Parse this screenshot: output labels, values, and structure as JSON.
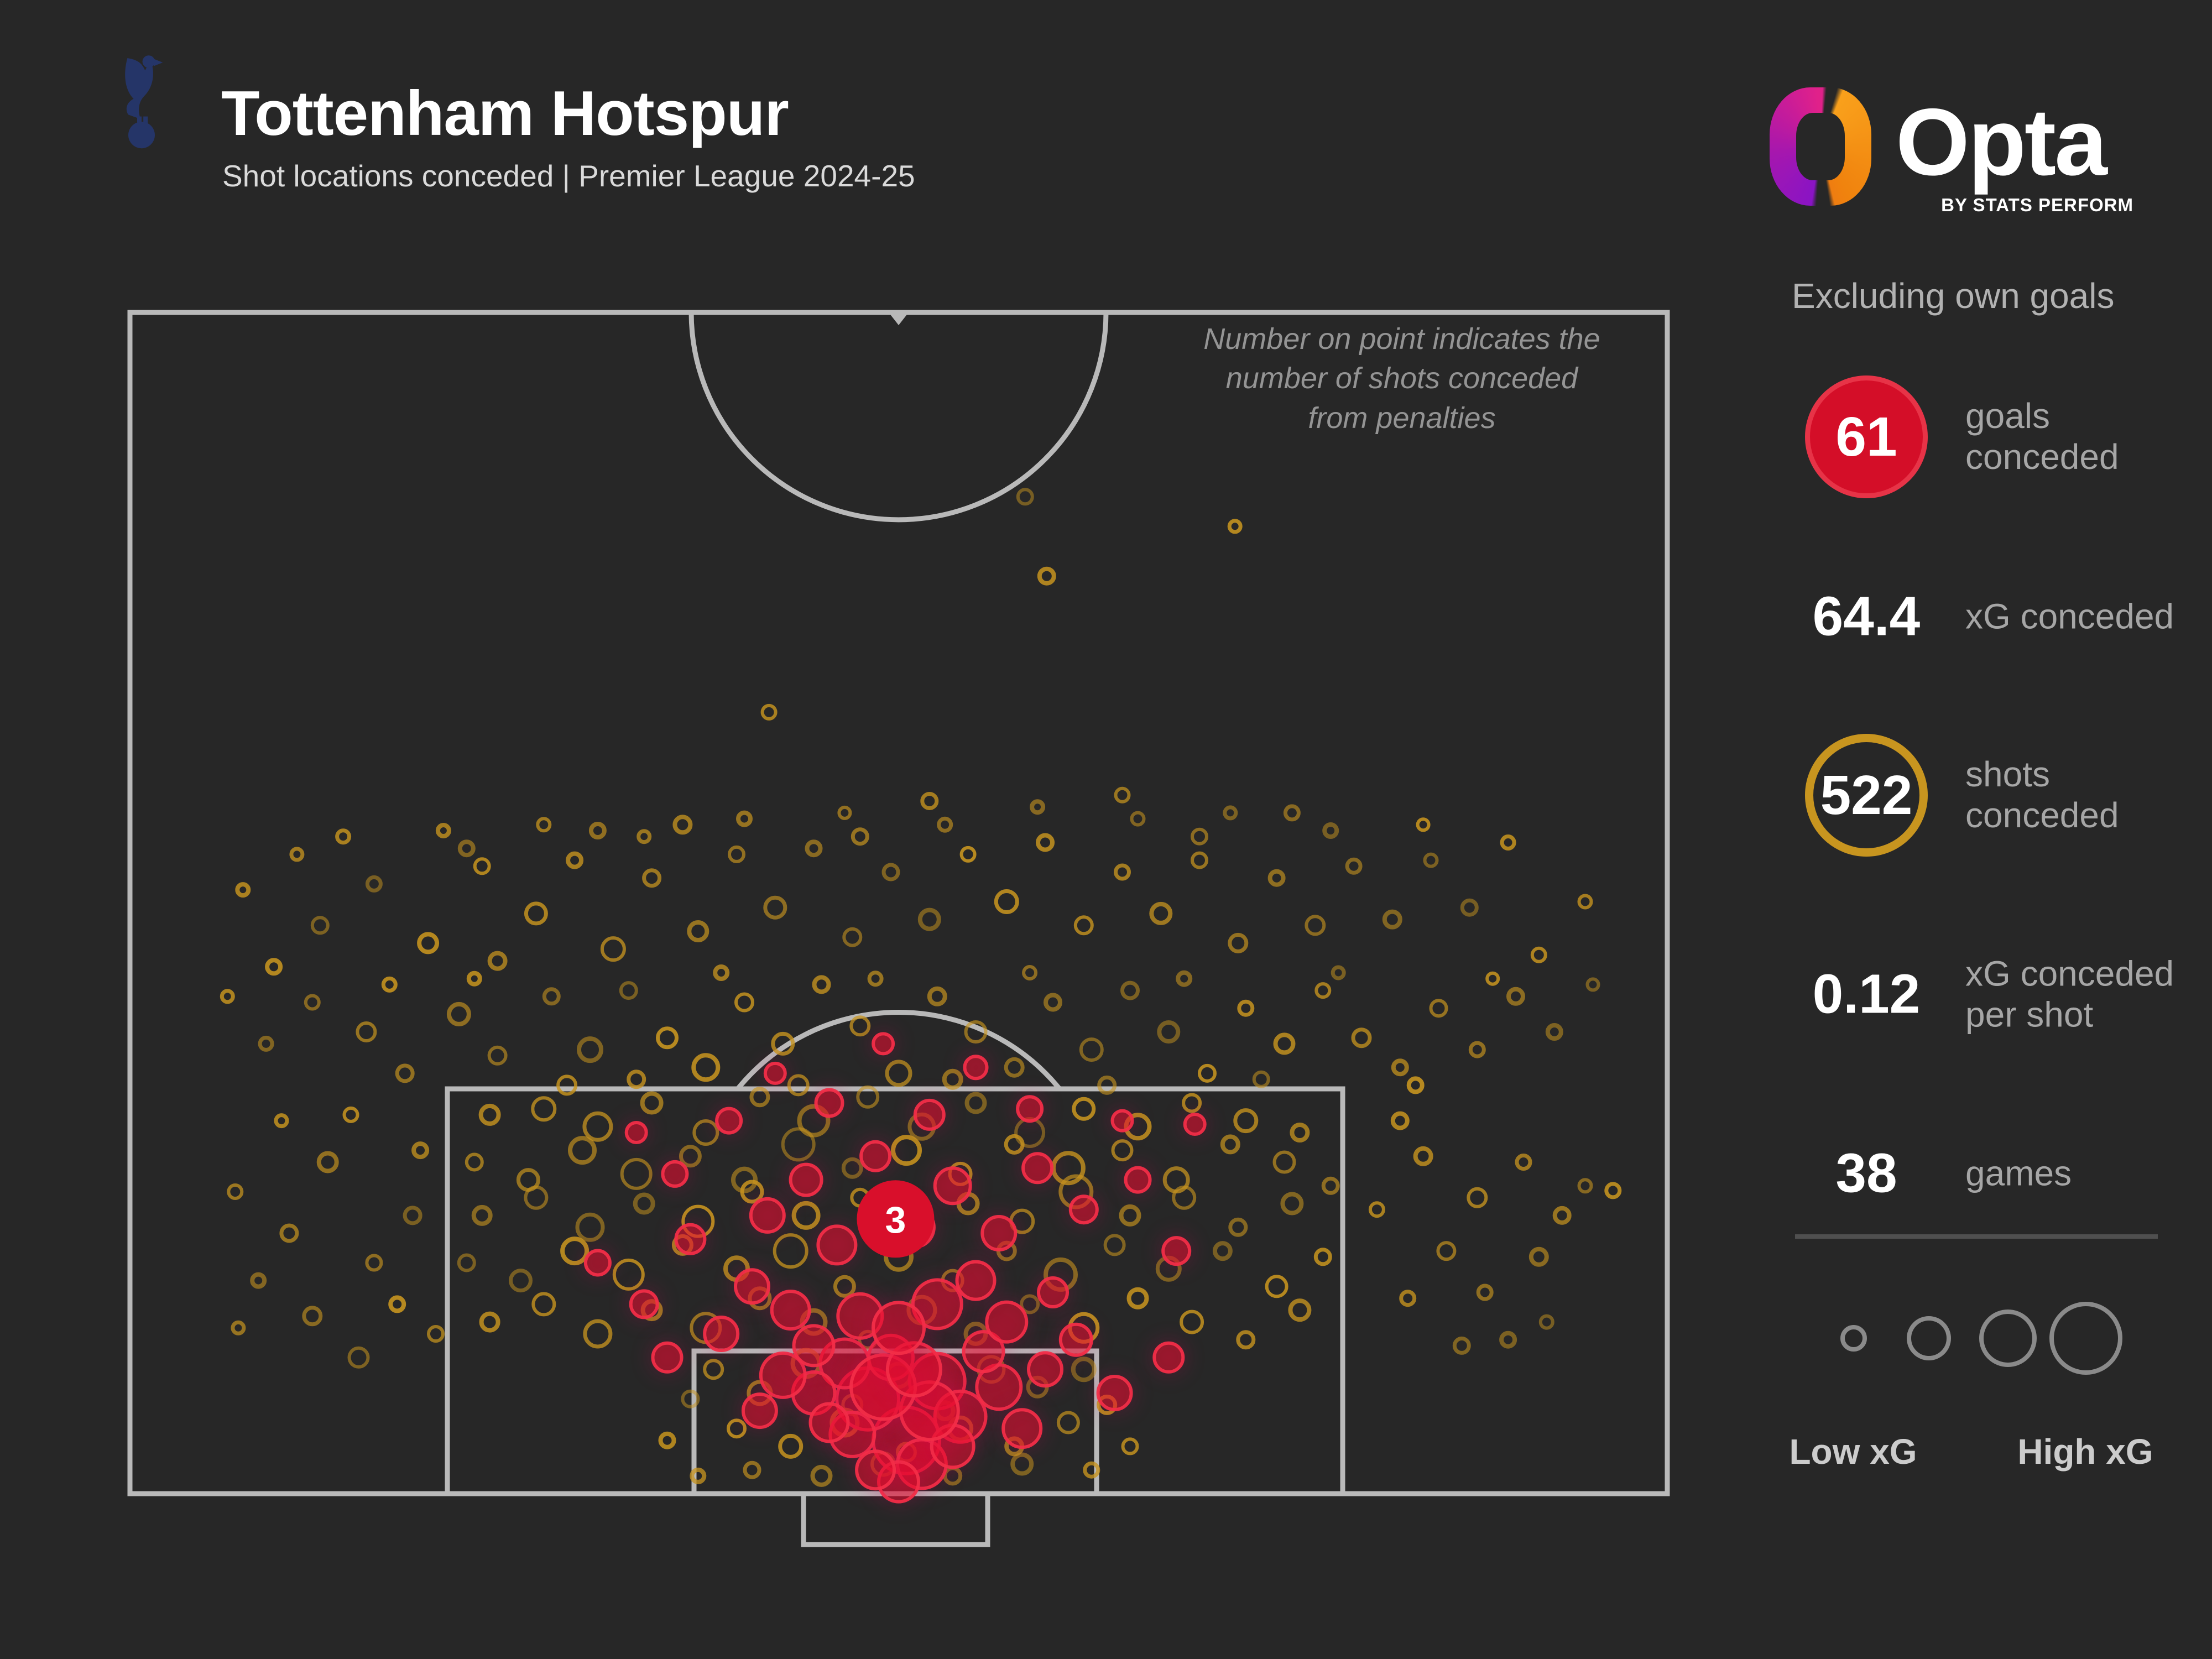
{
  "header": {
    "title": "Tottenham Hotspur",
    "subtitle": "Shot locations conceded | Premier League 2024-25",
    "crest_color": "#253568"
  },
  "brand": {
    "wordmark": "Opta",
    "byline": "BY STATS PERFORM",
    "ring_colors": {
      "magenta": "#e0218a",
      "purple": "#8a14c4",
      "orange": "#f9a01b",
      "amber": "#ef7d10"
    }
  },
  "stats_panel": {
    "heading": "Excluding own goals",
    "stats": [
      {
        "value": "61",
        "label": "goals conceded"
      },
      {
        "value": "64.4",
        "label": "xG conceded"
      },
      {
        "value": "522",
        "label": "shots conceded"
      },
      {
        "value": "0.12",
        "label_lines": [
          "xG conceded",
          "per shot"
        ]
      },
      {
        "value": "38",
        "label": "games"
      }
    ],
    "badge_colors": {
      "goal_fill": "#d40e28",
      "goal_rim": "#e73347",
      "shot_ring": "#c8951f"
    }
  },
  "legend": {
    "low_label": "Low xG",
    "high_label": "High xG",
    "ring_radii": [
      20,
      36,
      48,
      62
    ],
    "ring_color": "#8a8a8a"
  },
  "annotation": {
    "lines": [
      "Number on point indicates the",
      "number of shots conceded",
      "from penalties"
    ]
  },
  "pitch": {
    "line_color": "#b9b9b9",
    "background": "#272727"
  },
  "chart_data": {
    "type": "scatter",
    "title": "Shot locations conceded",
    "encoding": {
      "x": "pitch width percent (0 left - 100 right)",
      "y": "pitch length percent (0 halfway line - 100 goal line)",
      "size": "xG of chance (larger ring = higher xG)",
      "color": {
        "shot": "#c8951f",
        "goal": "#e8102c",
        "penalty_marker": "#d90f2b"
      }
    },
    "summary": {
      "goals_conceded": 61,
      "xg_conceded": 64.4,
      "shots_conceded": 522,
      "xg_per_shot": 0.12,
      "games": 38
    },
    "penalty_marker": {
      "x": 49.8,
      "y": 76.8,
      "r": 70,
      "count": "3"
    },
    "goals": [
      [
        50.5,
        95.5,
        60
      ],
      [
        48.0,
        92.0,
        56
      ],
      [
        52.5,
        90.5,
        50
      ],
      [
        46.5,
        89.0,
        44
      ],
      [
        54.0,
        93.5,
        46
      ],
      [
        49.5,
        88.5,
        40
      ],
      [
        51.5,
        97.5,
        44
      ],
      [
        47.0,
        95.0,
        40
      ],
      [
        53.5,
        96.0,
        38
      ],
      [
        44.5,
        91.5,
        38
      ],
      [
        56.5,
        91.0,
        40
      ],
      [
        50.0,
        99.0,
        36
      ],
      [
        45.5,
        94.0,
        34
      ],
      [
        42.5,
        90.0,
        40
      ],
      [
        58.0,
        94.5,
        34
      ],
      [
        48.5,
        98.0,
        34
      ],
      [
        55.5,
        88.0,
        36
      ],
      [
        41.0,
        93.0,
        30
      ],
      [
        59.5,
        89.5,
        30
      ],
      [
        52.0,
        93.0,
        52
      ],
      [
        49.0,
        91.0,
        58
      ],
      [
        51.0,
        89.5,
        48
      ],
      [
        38.5,
        86.5,
        30
      ],
      [
        43.0,
        84.5,
        34
      ],
      [
        47.5,
        85.0,
        40
      ],
      [
        52.5,
        84.0,
        44
      ],
      [
        57.0,
        85.5,
        36
      ],
      [
        61.5,
        87.0,
        28
      ],
      [
        35.0,
        88.5,
        26
      ],
      [
        64.0,
        91.5,
        30
      ],
      [
        40.5,
        82.5,
        30
      ],
      [
        55.0,
        82.0,
        34
      ],
      [
        60.0,
        83.0,
        26
      ],
      [
        33.5,
        84.0,
        24
      ],
      [
        67.5,
        88.5,
        26
      ],
      [
        44.5,
        87.5,
        36
      ],
      [
        50.0,
        86.0,
        46
      ],
      [
        36.5,
        78.5,
        26
      ],
      [
        41.5,
        76.5,
        30
      ],
      [
        46.0,
        79.0,
        34
      ],
      [
        51.0,
        77.5,
        36
      ],
      [
        56.5,
        78.0,
        30
      ],
      [
        62.0,
        76.0,
        24
      ],
      [
        30.5,
        80.5,
        22
      ],
      [
        68.0,
        79.5,
        24
      ],
      [
        44.0,
        73.5,
        28
      ],
      [
        53.5,
        74.0,
        32
      ],
      [
        59.0,
        72.5,
        26
      ],
      [
        35.5,
        73.0,
        22
      ],
      [
        48.5,
        71.5,
        26
      ],
      [
        65.5,
        73.5,
        22
      ],
      [
        39.0,
        68.5,
        22
      ],
      [
        45.5,
        67.0,
        24
      ],
      [
        52.0,
        68.0,
        26
      ],
      [
        58.5,
        67.5,
        22
      ],
      [
        33.0,
        69.5,
        18
      ],
      [
        64.5,
        68.5,
        18
      ],
      [
        42.0,
        64.5,
        18
      ],
      [
        55.0,
        64.0,
        20
      ],
      [
        49.0,
        62.0,
        18
      ],
      [
        69.2,
        68.8,
        18
      ]
    ],
    "shots": [
      [
        58.2,
        15.8,
        13
      ],
      [
        71.8,
        18.3,
        10
      ],
      [
        59.6,
        22.5,
        13
      ],
      [
        41.6,
        34.0,
        12
      ],
      [
        52.0,
        41.5,
        13
      ],
      [
        36.0,
        43.5,
        14
      ],
      [
        64.5,
        41.0,
        12
      ],
      [
        47.5,
        44.5,
        13
      ],
      [
        30.5,
        44.0,
        12
      ],
      [
        69.5,
        44.5,
        13
      ],
      [
        75.5,
        42.5,
        12
      ],
      [
        22.0,
        45.5,
        12
      ],
      [
        12.5,
        52.0,
        14
      ],
      [
        16.0,
        48.5,
        12
      ],
      [
        19.5,
        53.5,
        16
      ],
      [
        23.0,
        47.0,
        13
      ],
      [
        26.5,
        51.0,
        18
      ],
      [
        29.0,
        46.5,
        12
      ],
      [
        31.5,
        54.0,
        20
      ],
      [
        34.0,
        48.0,
        14
      ],
      [
        37.0,
        52.5,
        16
      ],
      [
        39.5,
        46.0,
        13
      ],
      [
        42.0,
        50.5,
        18
      ],
      [
        44.5,
        45.5,
        12
      ],
      [
        47.0,
        53.0,
        15
      ],
      [
        49.5,
        47.5,
        13
      ],
      [
        52.0,
        51.5,
        17
      ],
      [
        54.5,
        46.0,
        12
      ],
      [
        57.0,
        50.0,
        19
      ],
      [
        59.5,
        45.0,
        13
      ],
      [
        62.0,
        52.0,
        15
      ],
      [
        64.5,
        47.5,
        12
      ],
      [
        67.0,
        51.0,
        17
      ],
      [
        69.5,
        46.5,
        13
      ],
      [
        72.0,
        53.5,
        15
      ],
      [
        74.5,
        48.0,
        12
      ],
      [
        77.0,
        52.0,
        16
      ],
      [
        79.5,
        47.0,
        12
      ],
      [
        82.0,
        51.5,
        14
      ],
      [
        84.5,
        46.5,
        11
      ],
      [
        87.0,
        50.5,
        13
      ],
      [
        9.5,
        55.5,
        12
      ],
      [
        91.5,
        54.5,
        12
      ],
      [
        14.0,
        44.5,
        11
      ],
      [
        20.5,
        44.0,
        10
      ],
      [
        27.0,
        43.5,
        11
      ],
      [
        33.5,
        44.5,
        10
      ],
      [
        40.0,
        43.0,
        11
      ],
      [
        46.5,
        42.5,
        10
      ],
      [
        53.0,
        43.5,
        11
      ],
      [
        59.0,
        42.0,
        10
      ],
      [
        65.5,
        43.0,
        11
      ],
      [
        71.5,
        42.5,
        10
      ],
      [
        78.0,
        44.0,
        11
      ],
      [
        84.0,
        43.5,
        10
      ],
      [
        89.5,
        45.0,
        11
      ],
      [
        7.5,
        49.0,
        10
      ],
      [
        94.5,
        50.0,
        11
      ],
      [
        11.0,
        46.0,
        10
      ],
      [
        24.0,
        55.0,
        14
      ],
      [
        15.5,
        61.0,
        16
      ],
      [
        18.0,
        64.5,
        14
      ],
      [
        21.5,
        59.5,
        18
      ],
      [
        24.0,
        63.0,
        15
      ],
      [
        27.5,
        58.0,
        13
      ],
      [
        30.0,
        62.5,
        20
      ],
      [
        32.5,
        57.5,
        14
      ],
      [
        35.0,
        61.5,
        17
      ],
      [
        37.5,
        64.0,
        22
      ],
      [
        40.0,
        58.5,
        15
      ],
      [
        42.5,
        62.0,
        18
      ],
      [
        45.0,
        57.0,
        13
      ],
      [
        47.5,
        60.5,
        16
      ],
      [
        50.0,
        64.5,
        21
      ],
      [
        52.5,
        58.0,
        14
      ],
      [
        55.0,
        61.0,
        18
      ],
      [
        57.5,
        64.0,
        15
      ],
      [
        60.0,
        58.5,
        13
      ],
      [
        62.5,
        62.5,
        19
      ],
      [
        65.0,
        57.5,
        14
      ],
      [
        67.5,
        61.0,
        17
      ],
      [
        70.0,
        64.5,
        14
      ],
      [
        72.5,
        59.0,
        12
      ],
      [
        75.0,
        62.0,
        16
      ],
      [
        77.5,
        57.5,
        12
      ],
      [
        80.0,
        61.5,
        15
      ],
      [
        82.5,
        64.0,
        12
      ],
      [
        85.0,
        59.0,
        14
      ],
      [
        87.5,
        62.5,
        12
      ],
      [
        90.0,
        58.0,
        13
      ],
      [
        12.0,
        58.5,
        12
      ],
      [
        9.0,
        62.0,
        11
      ],
      [
        92.5,
        61.0,
        12
      ],
      [
        95.0,
        57.0,
        10
      ],
      [
        17.0,
        57.0,
        11
      ],
      [
        22.5,
        56.5,
        10
      ],
      [
        28.5,
        65.5,
        16
      ],
      [
        33.0,
        65.0,
        14
      ],
      [
        38.5,
        56.0,
        11
      ],
      [
        43.5,
        65.5,
        17
      ],
      [
        48.5,
        56.5,
        11
      ],
      [
        53.5,
        65.0,
        15
      ],
      [
        58.5,
        56.0,
        11
      ],
      [
        63.5,
        65.5,
        14
      ],
      [
        68.5,
        56.5,
        11
      ],
      [
        73.5,
        65.0,
        13
      ],
      [
        78.5,
        56.0,
        10
      ],
      [
        83.5,
        65.5,
        12
      ],
      [
        88.5,
        56.5,
        10
      ],
      [
        6.5,
        58.0,
        10
      ],
      [
        23.5,
        68.0,
        16
      ],
      [
        27.0,
        67.5,
        20
      ],
      [
        30.5,
        69.0,
        24
      ],
      [
        34.0,
        67.0,
        17
      ],
      [
        37.5,
        69.5,
        21
      ],
      [
        41.0,
        66.5,
        15
      ],
      [
        44.5,
        68.5,
        26
      ],
      [
        48.0,
        66.5,
        18
      ],
      [
        51.5,
        69.0,
        22
      ],
      [
        55.0,
        67.0,
        16
      ],
      [
        58.5,
        69.5,
        25
      ],
      [
        62.0,
        67.5,
        18
      ],
      [
        65.5,
        69.0,
        21
      ],
      [
        69.0,
        67.0,
        15
      ],
      [
        72.5,
        68.5,
        19
      ],
      [
        76.0,
        69.5,
        14
      ],
      [
        22.5,
        72.0,
        14
      ],
      [
        26.0,
        73.5,
        18
      ],
      [
        29.5,
        71.0,
        22
      ],
      [
        33.0,
        73.0,
        26
      ],
      [
        36.5,
        71.5,
        17
      ],
      [
        40.0,
        73.5,
        20
      ],
      [
        43.5,
        70.5,
        28
      ],
      [
        47.0,
        72.5,
        16
      ],
      [
        50.5,
        71.0,
        24
      ],
      [
        54.0,
        73.0,
        19
      ],
      [
        57.5,
        70.5,
        15
      ],
      [
        61.0,
        72.5,
        27
      ],
      [
        64.5,
        71.0,
        17
      ],
      [
        68.0,
        73.5,
        21
      ],
      [
        71.5,
        70.5,
        14
      ],
      [
        75.0,
        72.0,
        18
      ],
      [
        78.0,
        74.0,
        13
      ],
      [
        23.0,
        76.5,
        15
      ],
      [
        26.5,
        75.0,
        19
      ],
      [
        30.0,
        77.5,
        23
      ],
      [
        33.5,
        75.5,
        16
      ],
      [
        37.0,
        77.0,
        27
      ],
      [
        40.5,
        74.5,
        18
      ],
      [
        44.0,
        76.5,
        22
      ],
      [
        47.5,
        75.0,
        15
      ],
      [
        51.0,
        77.5,
        25
      ],
      [
        54.5,
        75.5,
        17
      ],
      [
        58.0,
        77.0,
        20
      ],
      [
        61.5,
        74.5,
        28
      ],
      [
        65.0,
        76.5,
        16
      ],
      [
        68.5,
        75.0,
        19
      ],
      [
        72.0,
        77.5,
        14
      ],
      [
        75.5,
        75.5,
        17
      ],
      [
        22.0,
        80.5,
        14
      ],
      [
        25.5,
        82.0,
        18
      ],
      [
        29.0,
        79.5,
        22
      ],
      [
        32.5,
        81.5,
        26
      ],
      [
        36.0,
        79.0,
        16
      ],
      [
        39.5,
        81.0,
        20
      ],
      [
        43.0,
        79.5,
        29
      ],
      [
        46.5,
        82.5,
        17
      ],
      [
        50.0,
        80.0,
        23
      ],
      [
        53.5,
        82.0,
        18
      ],
      [
        57.0,
        79.5,
        15
      ],
      [
        60.5,
        81.5,
        27
      ],
      [
        64.0,
        79.0,
        17
      ],
      [
        67.5,
        81.0,
        20
      ],
      [
        71.0,
        79.5,
        14
      ],
      [
        74.5,
        82.5,
        18
      ],
      [
        77.5,
        80.0,
        13
      ],
      [
        23.5,
        85.5,
        15
      ],
      [
        27.0,
        84.0,
        19
      ],
      [
        30.5,
        86.5,
        23
      ],
      [
        34.0,
        84.5,
        16
      ],
      [
        37.5,
        86.0,
        26
      ],
      [
        41.0,
        83.5,
        18
      ],
      [
        44.5,
        85.5,
        21
      ],
      [
        48.0,
        87.0,
        15
      ],
      [
        51.5,
        84.5,
        24
      ],
      [
        55.0,
        86.5,
        18
      ],
      [
        58.5,
        84.0,
        15
      ],
      [
        62.0,
        86.0,
        25
      ],
      [
        65.5,
        83.5,
        16
      ],
      [
        69.0,
        85.5,
        19
      ],
      [
        72.5,
        87.0,
        14
      ],
      [
        76.0,
        84.5,
        17
      ],
      [
        38.0,
        89.5,
        16
      ],
      [
        41.0,
        91.5,
        20
      ],
      [
        44.0,
        89.0,
        24
      ],
      [
        47.0,
        92.5,
        17
      ],
      [
        50.0,
        90.0,
        21
      ],
      [
        53.0,
        93.0,
        15
      ],
      [
        56.0,
        89.5,
        23
      ],
      [
        59.0,
        91.0,
        17
      ],
      [
        62.0,
        89.5,
        19
      ],
      [
        39.5,
        94.5,
        15
      ],
      [
        43.0,
        96.0,
        19
      ],
      [
        46.5,
        94.0,
        23
      ],
      [
        50.5,
        96.5,
        16
      ],
      [
        54.0,
        94.5,
        20
      ],
      [
        57.5,
        96.0,
        14
      ],
      [
        61.0,
        94.0,
        18
      ],
      [
        40.5,
        98.0,
        13
      ],
      [
        45.0,
        98.5,
        16
      ],
      [
        49.0,
        97.5,
        20
      ],
      [
        53.5,
        98.5,
        14
      ],
      [
        58.0,
        97.5,
        17
      ],
      [
        36.5,
        92.0,
        14
      ],
      [
        63.5,
        92.5,
        15
      ],
      [
        35.0,
        95.5,
        12
      ],
      [
        65.0,
        96.0,
        13
      ],
      [
        62.5,
        98.0,
        12
      ],
      [
        37.0,
        98.5,
        11
      ],
      [
        7.0,
        74.5,
        12
      ],
      [
        10.5,
        78.0,
        14
      ],
      [
        13.0,
        72.0,
        16
      ],
      [
        16.0,
        80.5,
        13
      ],
      [
        12.0,
        85.0,
        15
      ],
      [
        8.5,
        82.0,
        11
      ],
      [
        15.0,
        88.5,
        17
      ],
      [
        18.5,
        76.5,
        14
      ],
      [
        17.5,
        84.0,
        12
      ],
      [
        14.5,
        68.0,
        12
      ],
      [
        10.0,
        68.5,
        10
      ],
      [
        84.0,
        71.5,
        14
      ],
      [
        87.5,
        75.0,
        16
      ],
      [
        90.5,
        72.0,
        12
      ],
      [
        93.0,
        76.5,
        13
      ],
      [
        85.5,
        79.5,
        15
      ],
      [
        88.0,
        83.0,
        12
      ],
      [
        91.5,
        80.0,
        14
      ],
      [
        94.5,
        74.0,
        11
      ],
      [
        86.5,
        87.5,
        13
      ],
      [
        89.5,
        87.0,
        12
      ],
      [
        92.0,
        85.5,
        11
      ],
      [
        96.3,
        74.4,
        12
      ],
      [
        82.5,
        68.5,
        13
      ],
      [
        81.0,
        76.0,
        12
      ],
      [
        83.0,
        83.5,
        12
      ],
      [
        19.0,
        71.0,
        12
      ],
      [
        20.0,
        86.5,
        13
      ],
      [
        7.2,
        86.0,
        10
      ]
    ]
  }
}
